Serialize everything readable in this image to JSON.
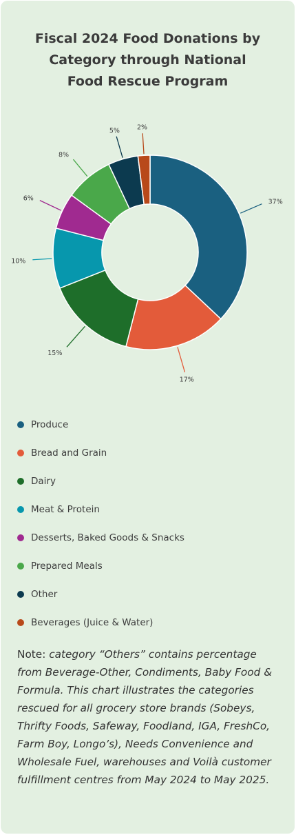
{
  "chart_data": {
    "type": "pie",
    "title_lines": [
      "Fiscal 2024 Food Donations by",
      "Category through National",
      "Food Rescue Program"
    ],
    "categories": [
      "Produce",
      "Bread and Grain",
      "Dairy",
      "Meat & Protein",
      "Desserts, Baked Goods & Snacks",
      "Prepared Meals",
      "Other",
      "Beverages (Juice & Water)"
    ],
    "values": [
      37,
      17,
      15,
      10,
      6,
      8,
      5,
      2
    ],
    "value_labels": [
      "37%",
      "17%",
      "15%",
      "10%",
      "6%",
      "8%",
      "5%",
      "2%"
    ],
    "colors": [
      "#1a6080",
      "#e35b3a",
      "#1e6e2a",
      "#0797ad",
      "#a02a90",
      "#4aa84a",
      "#0c3a4f",
      "#b8491a"
    ],
    "donut": true,
    "legend_position": "bottom"
  },
  "note": {
    "prefix": "Note: ",
    "text": "category “Others” contains percentage from Beverage-Other, Condiments, Baby Food & Formula. This chart illustrates the categories rescued for all grocery store brands (Sobeys, Thrifty Foods, Safeway, Foodland, IGA, FreshCo, Farm Boy, Longo’s), Needs Convenience and Wholesale Fuel, warehouses and Voilà customer fulfillment centres from May 2024 to May 2025."
  }
}
